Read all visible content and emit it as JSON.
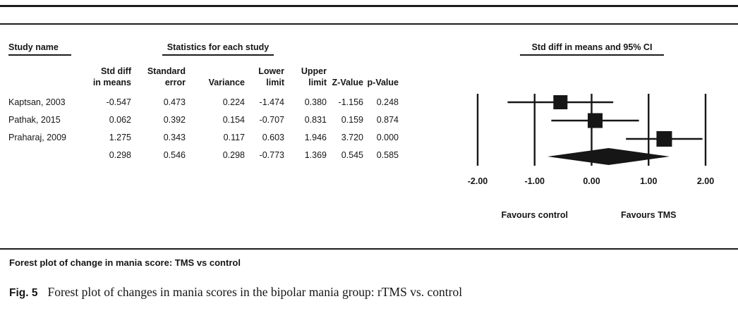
{
  "table": {
    "group_headers": {
      "study": "Study name",
      "stats": "Statistics for each study",
      "plot": "Std diff in means and 95% CI"
    },
    "columns": [
      {
        "line1": "Std diff",
        "line2": "in means"
      },
      {
        "line1": "Standard",
        "line2": "error"
      },
      {
        "line1": "",
        "line2": "Variance"
      },
      {
        "line1": "Lower",
        "line2": "limit"
      },
      {
        "line1": "Upper",
        "line2": "limit"
      },
      {
        "line1": "",
        "line2": "Z-Value"
      },
      {
        "line1": "",
        "line2": "p-Value"
      }
    ],
    "rows": [
      {
        "study": "Kaptsan, 2003",
        "values": [
          "-0.547",
          "0.473",
          "0.224",
          "-1.474",
          "0.380",
          "-1.156",
          "0.248"
        ]
      },
      {
        "study": "Pathak, 2015",
        "values": [
          "0.062",
          "0.392",
          "0.154",
          "-0.707",
          "0.831",
          "0.159",
          "0.874"
        ]
      },
      {
        "study": "Praharaj, 2009",
        "values": [
          "1.275",
          "0.343",
          "0.117",
          "0.603",
          "1.946",
          "3.720",
          "0.000"
        ]
      },
      {
        "study": "",
        "values": [
          "0.298",
          "0.546",
          "0.298",
          "-0.773",
          "1.369",
          "0.545",
          "0.585"
        ]
      }
    ]
  },
  "chart_data": {
    "type": "forest",
    "title": "Std diff in means and 95% CI",
    "xlim": [
      -2,
      2
    ],
    "axis_values": [
      -2,
      -1,
      0,
      1,
      2
    ],
    "axis_ticks": [
      "-2.00",
      "-1.00",
      "0.00",
      "1.00",
      "2.00"
    ],
    "grid": true,
    "studies": [
      {
        "name": "Kaptsan, 2003",
        "mean": -0.547,
        "lower": -1.474,
        "upper": 0.38,
        "se": 0.473
      },
      {
        "name": "Pathak, 2015",
        "mean": 0.062,
        "lower": -0.707,
        "upper": 0.831,
        "se": 0.392
      },
      {
        "name": "Praharaj, 2009",
        "mean": 1.275,
        "lower": 0.603,
        "upper": 1.946,
        "se": 0.343
      }
    ],
    "summary": {
      "mean": 0.298,
      "lower": -0.773,
      "upper": 1.369
    },
    "favours_left": "Favours control",
    "favours_right": "Favours TMS",
    "ink_color": "#161616"
  },
  "footer": {
    "plot_title": "Forest plot of change in mania score: TMS vs control",
    "fig_label": "Fig. 5",
    "fig_caption": "Forest plot of changes in mania scores in the bipolar mania group: rTMS vs. control"
  }
}
